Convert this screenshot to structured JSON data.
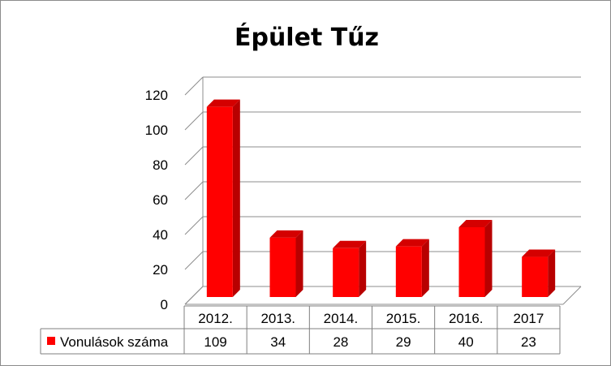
{
  "chart_data": {
    "type": "bar",
    "title": "Épület Tűz",
    "categories": [
      "2012.",
      "2013.",
      "2014.",
      "2015.",
      "2016.",
      "2017"
    ],
    "series": [
      {
        "name": "Vonulások száma",
        "values": [
          109,
          34,
          28,
          29,
          40,
          23
        ]
      }
    ],
    "ylim": [
      0,
      120
    ],
    "yticks": [
      "0",
      "20",
      "40",
      "60",
      "80",
      "100",
      "120"
    ],
    "grid": true,
    "legend": "data-table",
    "data_table": true,
    "colors": {
      "bar_front": "#ff0000",
      "bar_side": "#b80000",
      "bar_top": "#d40000",
      "grid": "#8c8c8c",
      "background": "#ffffff"
    }
  }
}
